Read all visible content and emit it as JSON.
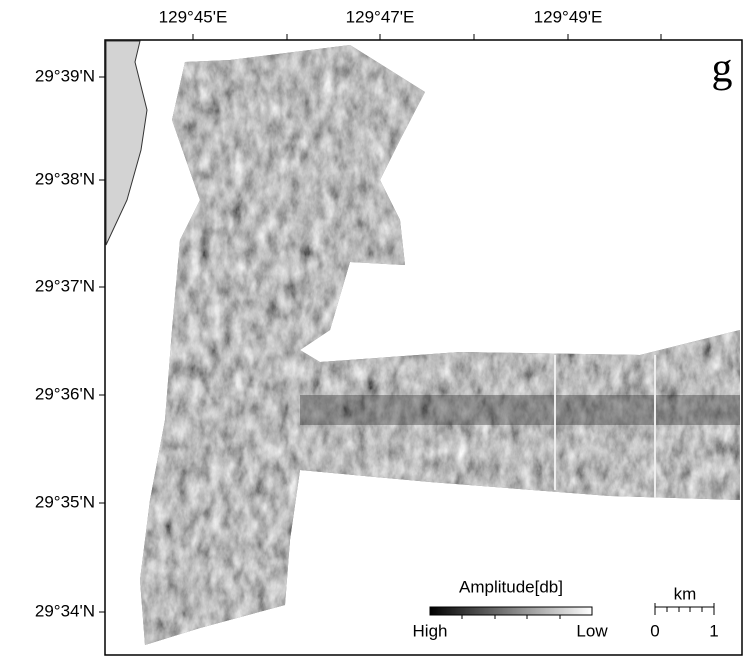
{
  "map": {
    "panel_label": "g",
    "longitude_labels": [
      "129°45'E",
      "129°47'E",
      "129°49'E"
    ],
    "latitude_labels": [
      "29°39'N",
      "29°38'N",
      "29°37'N",
      "29°36'N",
      "29°35'N",
      "29°34'N"
    ],
    "legend": {
      "title": "Amplitude[db]",
      "high": "High",
      "low": "Low"
    },
    "scale_bar": {
      "unit": "km",
      "start": 0,
      "end": 1
    }
  }
}
